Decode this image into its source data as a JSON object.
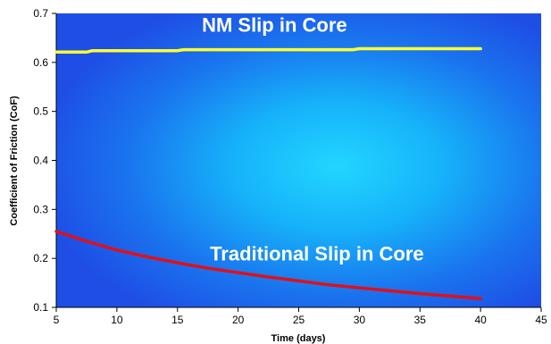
{
  "chart_data": {
    "type": "line",
    "title": "",
    "xlabel": "Time (days)",
    "ylabel": "Coefficient of Friction (CoF)",
    "xlim": [
      5,
      45
    ],
    "ylim": [
      0.1,
      0.7
    ],
    "x_ticks": [
      5,
      10,
      15,
      20,
      25,
      30,
      35,
      40,
      45
    ],
    "y_ticks": [
      0.1,
      0.2,
      0.3,
      0.4,
      0.5,
      0.6,
      0.7
    ],
    "grid": false,
    "legend": "none",
    "background": "blue radial gradient",
    "series": [
      {
        "name": "NM Slip in Core",
        "color": "#ffff33",
        "x": [
          5,
          7.5,
          8,
          15,
          15.5,
          29.5,
          30,
          40
        ],
        "y": [
          0.621,
          0.621,
          0.624,
          0.624,
          0.626,
          0.626,
          0.628,
          0.628
        ]
      },
      {
        "name": "Traditional Slip in Core",
        "color": "#e0101a",
        "x": [
          5,
          7.5,
          10,
          12.5,
          15,
          17.5,
          20,
          22.5,
          25,
          27.5,
          30,
          32.5,
          35,
          37.5,
          40
        ],
        "y": [
          0.255,
          0.235,
          0.217,
          0.203,
          0.191,
          0.18,
          0.171,
          0.162,
          0.154,
          0.146,
          0.14,
          0.134,
          0.128,
          0.123,
          0.118
        ]
      }
    ],
    "annotations": [
      {
        "text": "NM Slip in Core",
        "x": 23,
        "y": 0.663
      },
      {
        "text": "Traditional Slip in Core",
        "x": 26.5,
        "y": 0.196
      }
    ]
  }
}
